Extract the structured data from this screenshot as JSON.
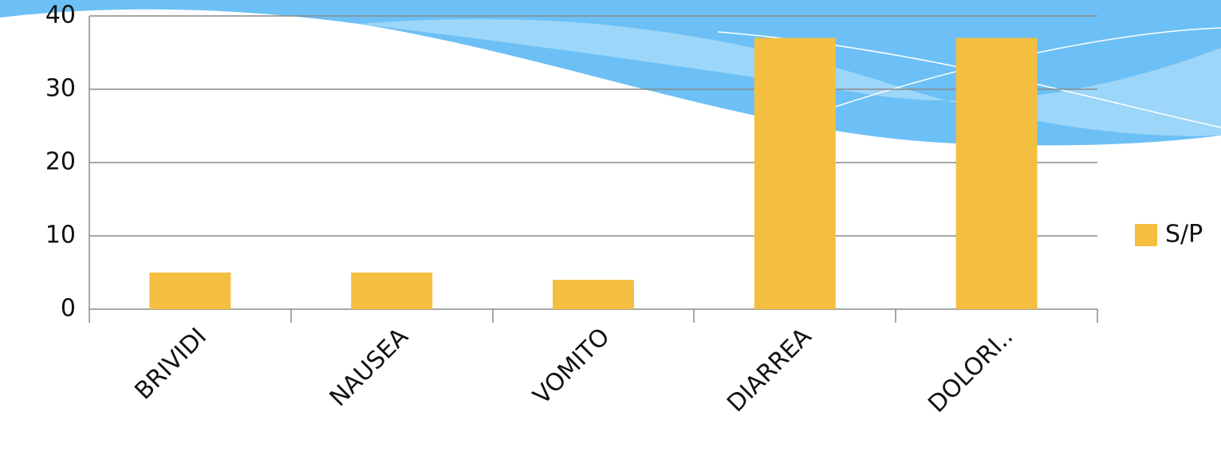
{
  "chart_data": {
    "type": "bar",
    "categories": [
      "BRIVIDI",
      "NAUSEA",
      "VOMITO",
      "DIARREA",
      "DOLORI.."
    ],
    "series": [
      {
        "name": "S/P",
        "color": "#f4bf40",
        "values": [
          5,
          5,
          4,
          37,
          37
        ]
      }
    ],
    "ylim": [
      0,
      40
    ],
    "yticks": [
      0,
      10,
      20,
      30,
      40
    ],
    "grid": true,
    "legend": "right"
  }
}
